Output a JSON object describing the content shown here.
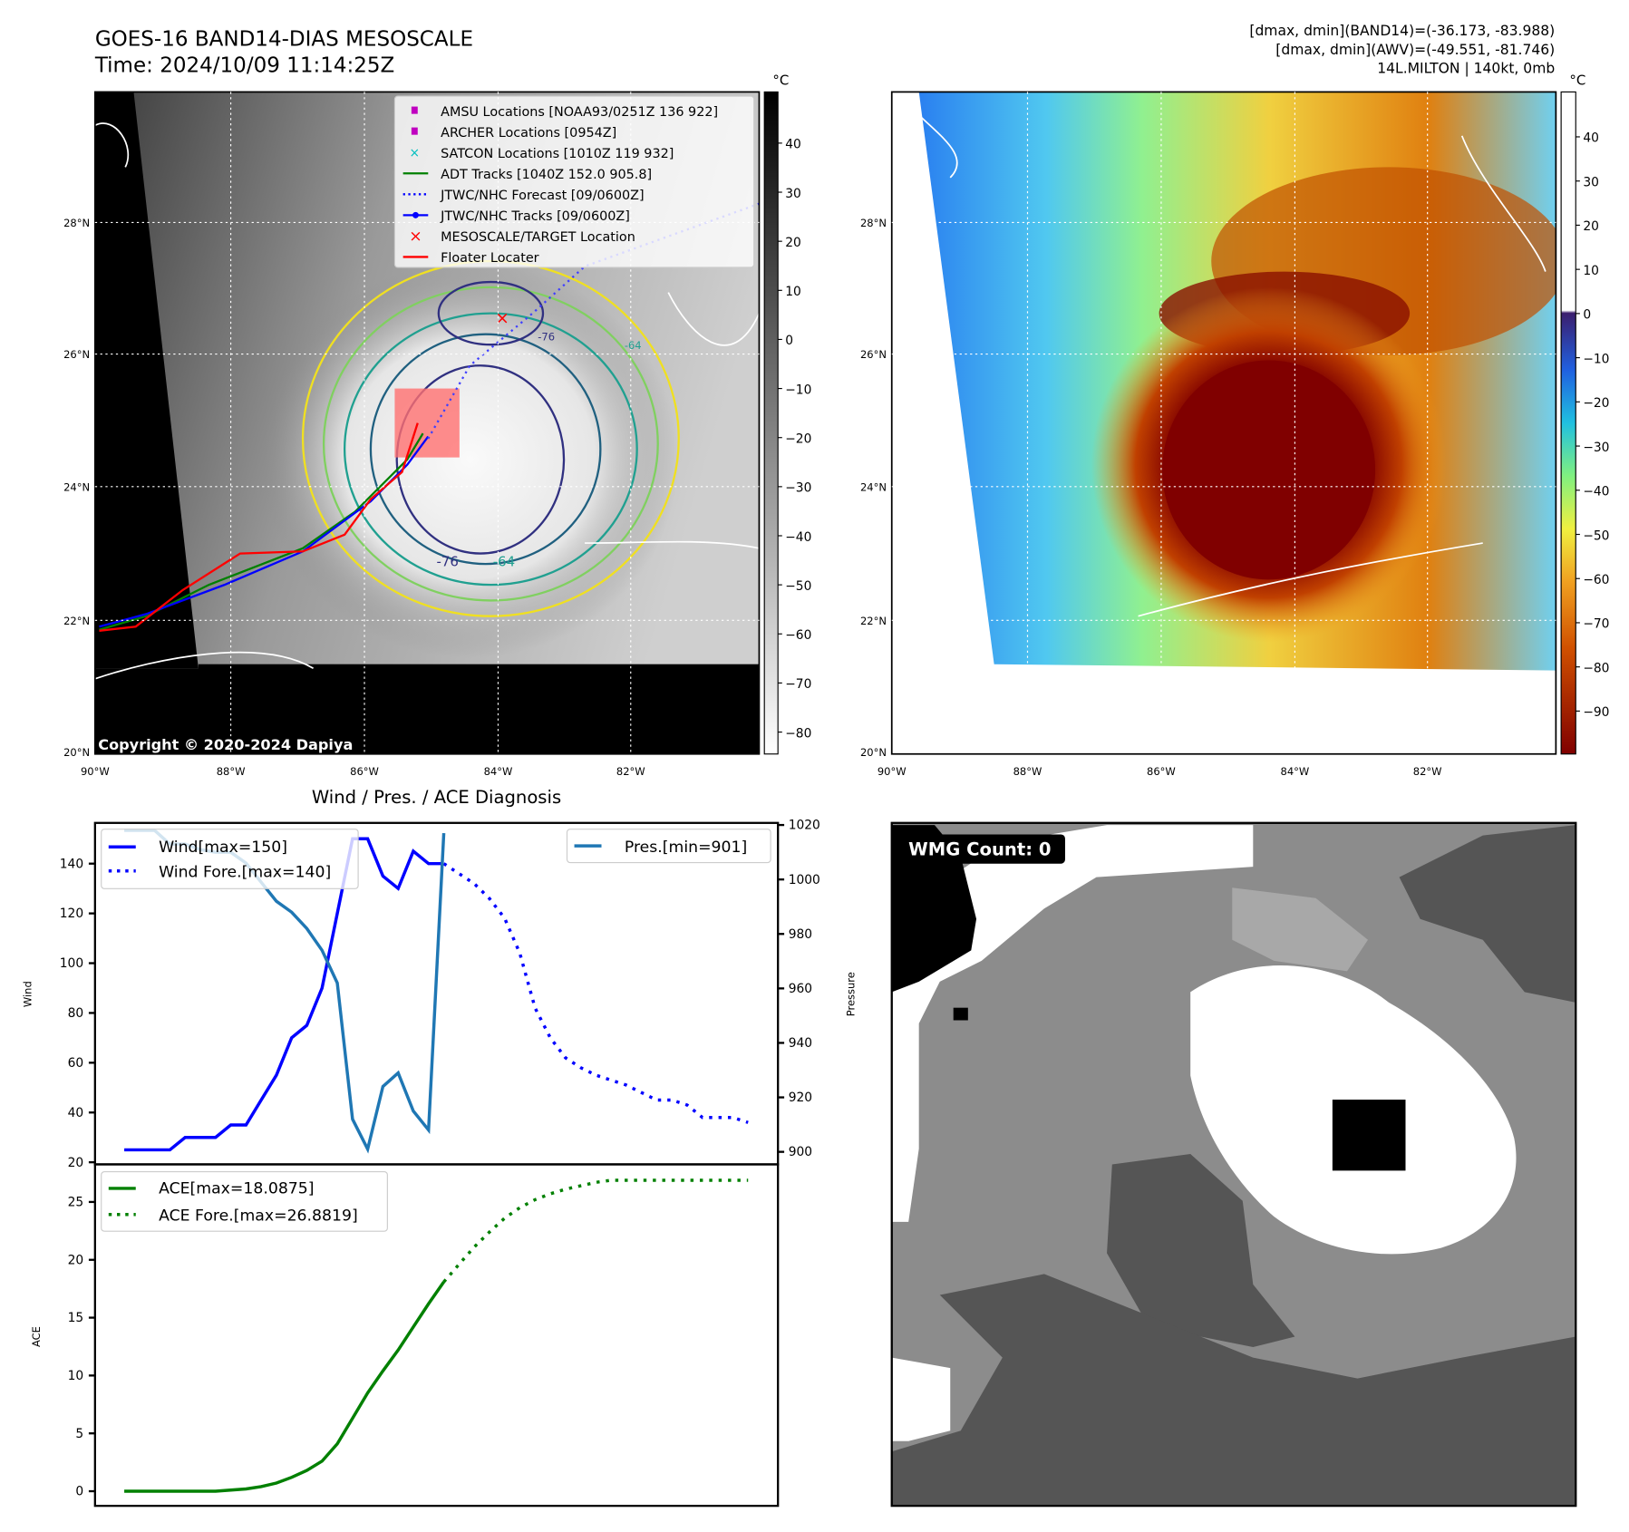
{
  "header": {
    "title": "GOES-16 BAND14-DIAS MESOSCALE",
    "time": "Time: 2024/10/09 11:14:25Z",
    "info_line1": "[dmax, dmin](BAND14)=(-36.173, -83.988)",
    "info_line2": "[dmax, dmin](AWV)=(-49.551, -81.746)",
    "info_line3": "14L.MILTON | 140kt, 0mb"
  },
  "map_left": {
    "legend": [
      "AMSU Locations [NOAA93/0251Z 136 922]",
      "ARCHER Locations [0954Z]",
      "SATCON Locations [1010Z 119 932]",
      "ADT Tracks [1040Z 152.0 905.8]",
      "JTWC/NHC Forecast [09/0600Z]",
      "JTWC/NHC Tracks [09/0600Z]",
      "MESOSCALE/TARGET Location",
      "Floater Locater"
    ],
    "copyright": "Copyright © 2020-2024 Dapiya",
    "contour_labels": [
      "-76",
      "-64",
      "-76",
      "-64"
    ],
    "colorbar_unit": "°C",
    "colorbar_ticks": [
      "40",
      "30",
      "20",
      "10",
      "0",
      "−10",
      "−20",
      "−30",
      "−40",
      "−50",
      "−60",
      "−70",
      "−80"
    ]
  },
  "map_right": {
    "colorbar_unit": "°C",
    "colorbar_ticks": [
      "40",
      "30",
      "20",
      "10",
      "0",
      "−10",
      "−20",
      "−30",
      "−40",
      "−50",
      "−60",
      "−70",
      "−80",
      "−90"
    ]
  },
  "axes": {
    "lat_ticks": [
      "28°N",
      "26°N",
      "24°N",
      "22°N",
      "20°N"
    ],
    "lon_ticks": [
      "90°W",
      "88°W",
      "86°W",
      "84°W",
      "82°W"
    ]
  },
  "wmg": {
    "label": "WMG Count: 0"
  },
  "colors": {
    "wind": "#0000ff",
    "pres": "#1f77b4",
    "ace": "#008000",
    "track_red": "#ff0000",
    "amsu": "#c000c0",
    "satcon": "#00bfbf"
  },
  "chart_data": {
    "type": "line",
    "title": "Wind / Pres. / ACE Diagnosis",
    "panels": [
      {
        "ylabel": "Wind",
        "y2label": "Pressure",
        "ylim": [
          20,
          152
        ],
        "y2lim": [
          898,
          1020
        ],
        "yticks": [
          "140",
          "120",
          "100",
          "80",
          "60",
          "40",
          "20"
        ],
        "y2ticks": [
          "1020",
          "1000",
          "980",
          "960",
          "940",
          "920",
          "900"
        ],
        "legend": [
          "Wind[max=150]",
          "Wind Fore.[max=140]"
        ],
        "legend2": [
          "Pres.[min=901]"
        ],
        "series": [
          {
            "name": "Wind",
            "x_start": 0,
            "values": [
              25,
              25,
              25,
              25,
              30,
              30,
              30,
              35,
              35,
              45,
              55,
              70,
              75,
              90,
              120,
              150,
              150,
              135,
              130,
              145,
              140,
              140
            ]
          },
          {
            "name": "Wind Fore.",
            "x_start": 21,
            "values": [
              140,
              136,
              132,
              126,
              118,
              104,
              82,
              70,
              62,
              58,
              55,
              53,
              51,
              48,
              45,
              45,
              43,
              38,
              38,
              38,
              36
            ]
          },
          {
            "name": "Pres.",
            "x_start": 0,
            "values": [
              1018,
              1018,
              1018,
              1013,
              1013,
              1011,
              1010,
              1010,
              1006,
              999,
              992,
              988,
              982,
              974,
              962,
              912,
              901,
              924,
              929,
              915,
              908,
              1017
            ]
          }
        ]
      },
      {
        "ylabel": "ACE",
        "ylim": [
          -1,
          27.5
        ],
        "yticks": [
          "25",
          "20",
          "15",
          "10",
          "5",
          "0"
        ],
        "legend": [
          "ACE[max=18.0875]",
          "ACE Fore.[max=26.8819]"
        ],
        "series": [
          {
            "name": "ACE",
            "x_start": 0,
            "values": [
              0,
              0,
              0,
              0,
              0,
              0,
              0,
              0.1,
              0.2,
              0.4,
              0.7,
              1.2,
              1.8,
              2.6,
              4.1,
              6.3,
              8.5,
              10.4,
              12.2,
              14.2,
              16.2,
              18.09
            ]
          },
          {
            "name": "ACE Fore.",
            "x_start": 21,
            "values": [
              18.09,
              19.6,
              21.1,
              22.4,
              23.6,
              24.5,
              25.2,
              25.7,
              26.1,
              26.4,
              26.7,
              26.88,
              26.88,
              26.88,
              26.88,
              26.88,
              26.88,
              26.88,
              26.88,
              26.88,
              26.88
            ]
          }
        ]
      }
    ]
  }
}
